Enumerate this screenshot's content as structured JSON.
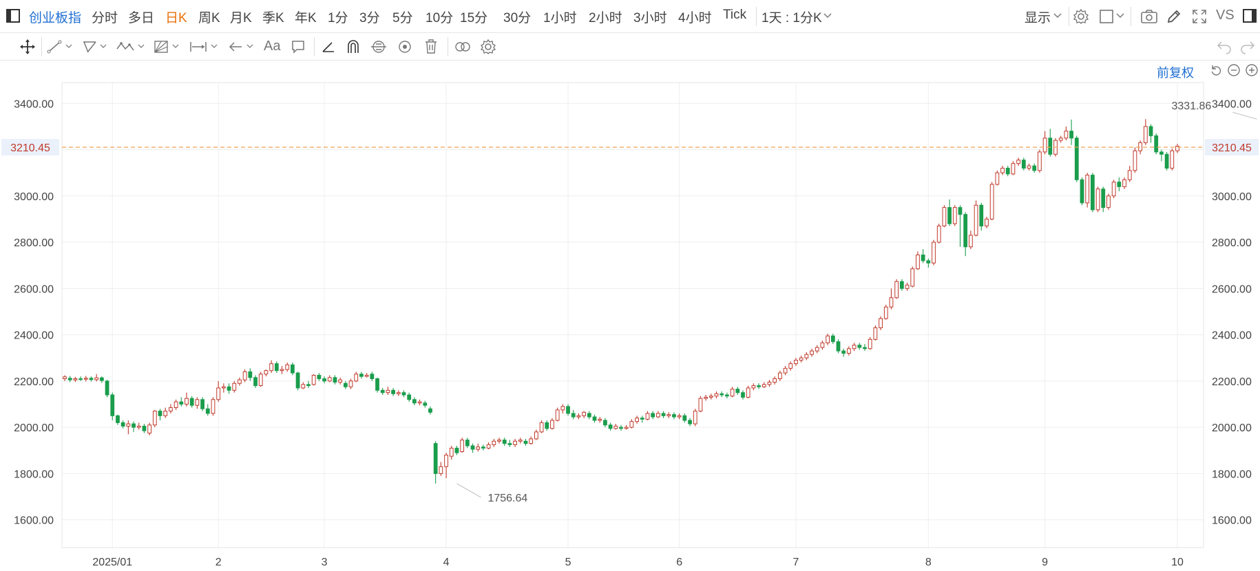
{
  "header": {
    "title": "创业板指",
    "periods": [
      "分时",
      "多日",
      "日K",
      "周K",
      "月K",
      "季K",
      "年K",
      "1分",
      "3分",
      "5分",
      "10分",
      "15分",
      "30分",
      "1小时",
      "2小时",
      "3小时",
      "4小时",
      "Tick"
    ],
    "active_period": "日K",
    "dropdown_label": "1天 : 1分K",
    "display_label": "显示",
    "vs_label": "VS"
  },
  "toolbar": {
    "font_tool_label": "Aa"
  },
  "chart_controls": {
    "adjust_label": "前复权"
  },
  "colors": {
    "up": "#c0392b",
    "down": "#1a9d4c",
    "accent": "#1f6fd1",
    "active": "#e8700b",
    "price_line": "#f0a050"
  },
  "chart_data": {
    "type": "candlestick",
    "title": "",
    "ylim": [
      1480,
      3490
    ],
    "y_ticks": [
      1600,
      1800,
      2000,
      2200,
      2400,
      2600,
      2800,
      3000,
      3200,
      3400
    ],
    "y_tick_labels": [
      "1600.00",
      "1800.00",
      "2000.00",
      "2200.00",
      "2400.00",
      "2600.00",
      "2800.00",
      "3000.00",
      "3200.00",
      "3400.00"
    ],
    "x_labels": [
      {
        "label": "2025/01",
        "index": 9
      },
      {
        "label": "2",
        "index": 29
      },
      {
        "label": "3",
        "index": 49
      },
      {
        "label": "4",
        "index": 72
      },
      {
        "label": "5",
        "index": 95
      },
      {
        "label": "6",
        "index": 116
      },
      {
        "label": "7",
        "index": 138
      },
      {
        "label": "8",
        "index": 163
      },
      {
        "label": "9",
        "index": 185
      },
      {
        "label": "10",
        "index": 210
      }
    ],
    "current_price": 3210.45,
    "current_price_label": "3210.45",
    "annotations": [
      {
        "label": "3331.86",
        "index": 225,
        "value": 3331.86
      },
      {
        "label": "1756.64",
        "index": 74,
        "value": 1756.64
      }
    ],
    "candles": [
      [
        2210,
        2218,
        2225,
        2200
      ],
      [
        2212,
        2205,
        2222,
        2195
      ],
      [
        2205,
        2210,
        2218,
        2196
      ],
      [
        2210,
        2208,
        2220,
        2200
      ],
      [
        2208,
        2212,
        2222,
        2198
      ],
      [
        2212,
        2206,
        2220,
        2198
      ],
      [
        2206,
        2214,
        2230,
        2198
      ],
      [
        2214,
        2202,
        2220,
        2192
      ],
      [
        2200,
        2140,
        2205,
        2130
      ],
      [
        2140,
        2050,
        2150,
        2030
      ],
      [
        2050,
        2020,
        2055,
        2010
      ],
      [
        2020,
        2005,
        2030,
        1995
      ],
      [
        2005,
        2015,
        2030,
        1970
      ],
      [
        2015,
        2000,
        2025,
        1980
      ],
      [
        2000,
        2005,
        2020,
        1990
      ],
      [
        2005,
        1985,
        2015,
        1975
      ],
      [
        1975,
        2010,
        2020,
        1965
      ],
      [
        2010,
        2070,
        2075,
        2000
      ],
      [
        2070,
        2050,
        2080,
        2030
      ],
      [
        2050,
        2070,
        2085,
        2040
      ],
      [
        2070,
        2085,
        2100,
        2060
      ],
      [
        2085,
        2110,
        2120,
        2075
      ],
      [
        2110,
        2100,
        2130,
        2090
      ],
      [
        2100,
        2125,
        2150,
        2090
      ],
      [
        2125,
        2095,
        2135,
        2085
      ],
      [
        2095,
        2120,
        2130,
        2080
      ],
      [
        2120,
        2080,
        2130,
        2070
      ],
      [
        2080,
        2060,
        2100,
        2050
      ],
      [
        2060,
        2120,
        2130,
        2050
      ],
      [
        2120,
        2170,
        2200,
        2110
      ],
      [
        2170,
        2175,
        2190,
        2150
      ],
      [
        2175,
        2160,
        2190,
        2145
      ],
      [
        2160,
        2190,
        2200,
        2150
      ],
      [
        2190,
        2205,
        2215,
        2180
      ],
      [
        2205,
        2240,
        2250,
        2195
      ],
      [
        2240,
        2215,
        2255,
        2200
      ],
      [
        2215,
        2180,
        2225,
        2170
      ],
      [
        2180,
        2230,
        2240,
        2175
      ],
      [
        2230,
        2245,
        2250,
        2220
      ],
      [
        2245,
        2275,
        2290,
        2235
      ],
      [
        2275,
        2245,
        2285,
        2235
      ],
      [
        2245,
        2250,
        2265,
        2230
      ],
      [
        2250,
        2270,
        2280,
        2240
      ],
      [
        2270,
        2235,
        2280,
        2225
      ],
      [
        2235,
        2170,
        2240,
        2160
      ],
      [
        2170,
        2185,
        2195,
        2165
      ],
      [
        2185,
        2180,
        2200,
        2170
      ],
      [
        2185,
        2225,
        2230,
        2180
      ],
      [
        2225,
        2210,
        2235,
        2200
      ],
      [
        2210,
        2200,
        2220,
        2190
      ],
      [
        2200,
        2215,
        2225,
        2195
      ],
      [
        2215,
        2195,
        2225,
        2185
      ],
      [
        2195,
        2205,
        2215,
        2185
      ],
      [
        2190,
        2175,
        2200,
        2165
      ],
      [
        2175,
        2200,
        2210,
        2165
      ],
      [
        2200,
        2230,
        2240,
        2195
      ],
      [
        2230,
        2220,
        2240,
        2210
      ],
      [
        2220,
        2225,
        2235,
        2215
      ],
      [
        2230,
        2210,
        2240,
        2200
      ],
      [
        2210,
        2160,
        2215,
        2150
      ],
      [
        2160,
        2150,
        2170,
        2140
      ],
      [
        2150,
        2160,
        2175,
        2140
      ],
      [
        2160,
        2145,
        2170,
        2135
      ],
      [
        2145,
        2150,
        2160,
        2135
      ],
      [
        2150,
        2140,
        2160,
        2130
      ],
      [
        2140,
        2120,
        2150,
        2110
      ],
      [
        2120,
        2105,
        2130,
        2095
      ],
      [
        2105,
        2110,
        2120,
        2095
      ],
      [
        2105,
        2095,
        2115,
        2085
      ],
      [
        2080,
        2065,
        2090,
        2055
      ],
      [
        1930,
        1800,
        1940,
        1756.64
      ],
      [
        1800,
        1830,
        1850,
        1790
      ],
      [
        1830,
        1880,
        1890,
        1780
      ],
      [
        1875,
        1910,
        1920,
        1860
      ],
      [
        1910,
        1890,
        1920,
        1880
      ],
      [
        1895,
        1945,
        1955,
        1890
      ],
      [
        1945,
        1920,
        1955,
        1910
      ],
      [
        1920,
        1905,
        1930,
        1890
      ],
      [
        1905,
        1915,
        1930,
        1895
      ],
      [
        1915,
        1910,
        1925,
        1900
      ],
      [
        1910,
        1925,
        1935,
        1905
      ],
      [
        1925,
        1940,
        1950,
        1915
      ],
      [
        1940,
        1945,
        1955,
        1930
      ],
      [
        1945,
        1930,
        1955,
        1920
      ],
      [
        1930,
        1925,
        1945,
        1915
      ],
      [
        1925,
        1940,
        1950,
        1915
      ],
      [
        1940,
        1945,
        1955,
        1930
      ],
      [
        1940,
        1930,
        1950,
        1920
      ],
      [
        1930,
        1950,
        1960,
        1925
      ],
      [
        1950,
        1980,
        1990,
        1945
      ],
      [
        1980,
        2020,
        2030,
        1975
      ],
      [
        2020,
        1995,
        2030,
        1985
      ],
      [
        1995,
        2030,
        2040,
        1990
      ],
      [
        2030,
        2075,
        2085,
        2025
      ],
      [
        2075,
        2090,
        2100,
        2060
      ],
      [
        2090,
        2060,
        2100,
        2050
      ],
      [
        2060,
        2045,
        2075,
        2035
      ],
      [
        2045,
        2050,
        2060,
        2035
      ],
      [
        2050,
        2065,
        2070,
        2040
      ],
      [
        2060,
        2045,
        2070,
        2035
      ],
      [
        2045,
        2030,
        2055,
        2020
      ],
      [
        2030,
        2035,
        2045,
        2020
      ],
      [
        2030,
        2010,
        2040,
        2000
      ],
      [
        2010,
        1995,
        2020,
        1985
      ],
      [
        1995,
        2005,
        2015,
        1990
      ],
      [
        2000,
        1995,
        2010,
        1985
      ],
      [
        1995,
        2000,
        2010,
        1990
      ],
      [
        2000,
        2025,
        2035,
        1995
      ],
      [
        2025,
        2040,
        2050,
        2015
      ],
      [
        2040,
        2035,
        2050,
        2020
      ],
      [
        2035,
        2060,
        2070,
        2030
      ],
      [
        2060,
        2045,
        2070,
        2035
      ],
      [
        2045,
        2060,
        2070,
        2040
      ],
      [
        2060,
        2050,
        2070,
        2040
      ],
      [
        2050,
        2055,
        2065,
        2040
      ],
      [
        2055,
        2045,
        2065,
        2035
      ],
      [
        2045,
        2050,
        2060,
        2035
      ],
      [
        2050,
        2030,
        2060,
        2020
      ],
      [
        2030,
        2015,
        2040,
        2005
      ],
      [
        2015,
        2070,
        2080,
        2005
      ],
      [
        2070,
        2125,
        2135,
        2065
      ],
      [
        2125,
        2130,
        2140,
        2115
      ],
      [
        2130,
        2135,
        2145,
        2120
      ],
      [
        2135,
        2145,
        2155,
        2125
      ],
      [
        2145,
        2140,
        2155,
        2130
      ],
      [
        2140,
        2135,
        2150,
        2125
      ],
      [
        2135,
        2165,
        2175,
        2130
      ],
      [
        2165,
        2150,
        2175,
        2140
      ],
      [
        2150,
        2130,
        2160,
        2120
      ],
      [
        2130,
        2170,
        2180,
        2125
      ],
      [
        2170,
        2180,
        2190,
        2160
      ],
      [
        2180,
        2175,
        2190,
        2165
      ],
      [
        2175,
        2185,
        2195,
        2170
      ],
      [
        2185,
        2195,
        2205,
        2175
      ],
      [
        2195,
        2210,
        2220,
        2185
      ],
      [
        2210,
        2235,
        2245,
        2200
      ],
      [
        2235,
        2255,
        2265,
        2225
      ],
      [
        2255,
        2275,
        2285,
        2245
      ],
      [
        2275,
        2290,
        2300,
        2265
      ],
      [
        2290,
        2300,
        2310,
        2280
      ],
      [
        2300,
        2315,
        2325,
        2290
      ],
      [
        2315,
        2330,
        2340,
        2305
      ],
      [
        2330,
        2345,
        2355,
        2320
      ],
      [
        2345,
        2365,
        2375,
        2335
      ],
      [
        2365,
        2395,
        2405,
        2355
      ],
      [
        2395,
        2370,
        2405,
        2360
      ],
      [
        2370,
        2330,
        2380,
        2320
      ],
      [
        2330,
        2320,
        2340,
        2305
      ],
      [
        2320,
        2340,
        2350,
        2310
      ],
      [
        2340,
        2355,
        2365,
        2330
      ],
      [
        2355,
        2345,
        2365,
        2335
      ],
      [
        2345,
        2340,
        2360,
        2330
      ],
      [
        2340,
        2380,
        2390,
        2335
      ],
      [
        2380,
        2430,
        2440,
        2375
      ],
      [
        2430,
        2470,
        2480,
        2420
      ],
      [
        2470,
        2520,
        2530,
        2465
      ],
      [
        2520,
        2560,
        2600,
        2510
      ],
      [
        2560,
        2630,
        2640,
        2555
      ],
      [
        2630,
        2600,
        2640,
        2590
      ],
      [
        2600,
        2615,
        2625,
        2590
      ],
      [
        2610,
        2685,
        2695,
        2605
      ],
      [
        2685,
        2745,
        2760,
        2680
      ],
      [
        2745,
        2720,
        2770,
        2710
      ],
      [
        2720,
        2710,
        2730,
        2690
      ],
      [
        2710,
        2800,
        2810,
        2700
      ],
      [
        2800,
        2870,
        2880,
        2795
      ],
      [
        2870,
        2950,
        2960,
        2865
      ],
      [
        2950,
        2880,
        2985,
        2870
      ],
      [
        2880,
        2950,
        2960,
        2870
      ],
      [
        2950,
        2920,
        2960,
        2780
      ],
      [
        2920,
        2780,
        2930,
        2740
      ],
      [
        2780,
        2830,
        2850,
        2770
      ],
      [
        2830,
        2960,
        2980,
        2825
      ],
      [
        2960,
        2870,
        2970,
        2850
      ],
      [
        2870,
        2900,
        2910,
        2860
      ],
      [
        2900,
        3050,
        3060,
        2895
      ],
      [
        3050,
        3100,
        3110,
        3045
      ],
      [
        3100,
        3120,
        3130,
        3090
      ],
      [
        3120,
        3095,
        3130,
        3085
      ],
      [
        3095,
        3140,
        3150,
        3090
      ],
      [
        3140,
        3155,
        3165,
        3130
      ],
      [
        3155,
        3120,
        3165,
        3110
      ],
      [
        3120,
        3130,
        3140,
        3110
      ],
      [
        3130,
        3110,
        3140,
        3100
      ],
      [
        3110,
        3190,
        3200,
        3100
      ],
      [
        3190,
        3250,
        3280,
        3180
      ],
      [
        3250,
        3180,
        3290,
        3170
      ],
      [
        3180,
        3240,
        3250,
        3170
      ],
      [
        3240,
        3250,
        3260,
        3230
      ],
      [
        3250,
        3280,
        3300,
        3240
      ],
      [
        3280,
        3250,
        3330,
        3220
      ],
      [
        3250,
        3070,
        3260,
        3060
      ],
      [
        3070,
        2970,
        3080,
        2960
      ],
      [
        2970,
        3090,
        3100,
        2950
      ],
      [
        3090,
        2940,
        3100,
        2930
      ],
      [
        2940,
        3030,
        3040,
        2930
      ],
      [
        3030,
        2950,
        3040,
        2930
      ],
      [
        2950,
        3000,
        3010,
        2940
      ],
      [
        3000,
        3060,
        3070,
        2990
      ],
      [
        3060,
        3040,
        3080,
        3020
      ],
      [
        3040,
        3070,
        3080,
        3030
      ],
      [
        3070,
        3110,
        3130,
        3060
      ],
      [
        3110,
        3195,
        3210,
        3100
      ],
      [
        3195,
        3230,
        3240,
        3180
      ],
      [
        3230,
        3300,
        3331.86,
        3220
      ],
      [
        3300,
        3260,
        3310,
        3230
      ],
      [
        3260,
        3190,
        3270,
        3180
      ],
      [
        3190,
        3180,
        3200,
        3150
      ],
      [
        3180,
        3120,
        3190,
        3110
      ],
      [
        3120,
        3195,
        3205,
        3110
      ],
      [
        3195,
        3215,
        3225,
        3185
      ]
    ]
  }
}
